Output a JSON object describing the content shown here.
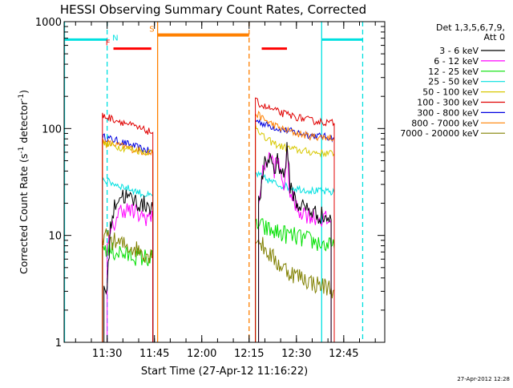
{
  "chart_data": {
    "type": "line",
    "title": "HESSI Observing Summary Count Rates, Corrected",
    "xlabel": "Start Time (27-Apr-12 11:16:22)",
    "ylabel_parts": {
      "before": "Corrected Count Rate (s",
      "sup1": "-1",
      "middle": " detector",
      "sup2": "-1",
      "after": ")"
    },
    "ylabel": "Corrected Count Rate (s-1 detector-1)",
    "y_scale": "log",
    "ylim": [
      1,
      1000
    ],
    "y_ticks": [
      {
        "value": 1,
        "label": "1"
      },
      {
        "value": 10,
        "label": "10"
      },
      {
        "value": 100,
        "label": "100"
      },
      {
        "value": 1000,
        "label": "1000"
      }
    ],
    "xlim": [
      "11:16:22",
      "12:58:00"
    ],
    "x_ticks": [
      {
        "time": "11:30",
        "label": "11:30"
      },
      {
        "time": "11:45",
        "label": "11:45"
      },
      {
        "time": "12:00",
        "label": "12:00"
      },
      {
        "time": "12:15",
        "label": "12:15"
      },
      {
        "time": "12:30",
        "label": "12:30"
      },
      {
        "time": "12:45",
        "label": "12:45"
      }
    ],
    "legend_header": [
      "Det 1,3,5,6,7,9,",
      "Att 0"
    ],
    "legend_position": "right",
    "series": [
      {
        "name": "3 - 6 keV",
        "color": "#000000",
        "times": [
          "11:29",
          "11:30",
          "11:31",
          "11:33",
          "11:35",
          "11:37",
          "11:39",
          "11:41",
          "11:43",
          "11:44.5",
          "12:18",
          "12:20",
          "12:22",
          "12:23",
          "12:24",
          "12:26",
          "12:27",
          "12:28",
          "12:30",
          "12:33",
          "12:36",
          "12:39",
          "12:41"
        ],
        "values": [
          3.5,
          3,
          12,
          22,
          24,
          22,
          21,
          19,
          20,
          18,
          20,
          45,
          55,
          40,
          52,
          35,
          62,
          30,
          20,
          18,
          16,
          15,
          14
        ]
      },
      {
        "name": "6 - 12 keV",
        "color": "#ff00ff",
        "times": [
          "11:30",
          "11:31",
          "11:33",
          "11:35",
          "11:37",
          "11:39",
          "11:41",
          "11:43",
          "11:44.5",
          "12:18",
          "12:20",
          "12:22",
          "12:23",
          "12:24",
          "12:26",
          "12:27",
          "12:28",
          "12:30",
          "12:33",
          "12:36",
          "12:39",
          "12:41"
        ],
        "values": [
          7,
          10,
          15,
          18,
          17,
          16,
          15,
          15,
          14,
          22,
          48,
          55,
          42,
          50,
          30,
          56,
          25,
          18,
          16,
          15,
          14,
          13
        ]
      },
      {
        "name": "12 - 25 keV",
        "color": "#00e000",
        "times": [
          "11:28.5",
          "11:30",
          "11:32",
          "11:34",
          "11:36",
          "11:38",
          "11:40",
          "11:42",
          "11:44.5",
          "12:17",
          "12:19",
          "12:22",
          "12:25",
          "12:28",
          "12:31",
          "12:34",
          "12:37",
          "12:40",
          "12:42"
        ],
        "values": [
          8,
          7.5,
          7,
          7,
          6.5,
          6.5,
          6.3,
          6.2,
          6,
          13,
          12,
          11,
          10.5,
          10,
          9.5,
          9,
          8.5,
          8,
          7.5
        ]
      },
      {
        "name": "25 - 50 keV",
        "color": "#00e0e0",
        "times": [
          "11:28.5",
          "11:30",
          "11:33",
          "11:36",
          "11:39",
          "11:42",
          "11:44.5",
          "12:17",
          "12:20",
          "12:24",
          "12:28",
          "12:32",
          "12:36",
          "12:40",
          "12:42"
        ],
        "values": [
          34,
          32,
          30,
          28,
          26,
          24,
          23,
          38,
          34,
          30,
          28,
          27,
          26,
          25.5,
          25
        ]
      },
      {
        "name": "50 - 100 keV",
        "color": "#d8c800",
        "times": [
          "11:28.5",
          "11:31",
          "11:35",
          "11:40",
          "11:44.5",
          "12:17",
          "12:20",
          "12:25",
          "12:30",
          "12:35",
          "12:42"
        ],
        "values": [
          72,
          70,
          66,
          62,
          60,
          108,
          80,
          68,
          63,
          60,
          58
        ]
      },
      {
        "name": "100 - 300 keV",
        "color": "#e00000",
        "times": [
          "11:28.5",
          "11:31",
          "11:35",
          "11:40",
          "11:44.5",
          "12:17",
          "12:20",
          "12:25",
          "12:30",
          "12:35",
          "12:42"
        ],
        "values": [
          132,
          125,
          115,
          100,
          92,
          180,
          160,
          140,
          128,
          118,
          112
        ]
      },
      {
        "name": "300 - 800 keV",
        "color": "#0000e0",
        "times": [
          "11:28.5",
          "11:31",
          "11:35",
          "11:40",
          "11:44.5",
          "12:17",
          "12:20",
          "12:25",
          "12:30",
          "12:35",
          "12:42"
        ],
        "values": [
          84,
          80,
          74,
          66,
          60,
          120,
          110,
          98,
          92,
          86,
          82
        ]
      },
      {
        "name": "800 - 7000 keV",
        "color": "#ff8000",
        "times": [
          "11:28.5",
          "11:31",
          "11:35",
          "11:40",
          "11:44.5",
          "12:17",
          "12:20",
          "12:25",
          "12:30",
          "12:35",
          "12:42"
        ],
        "values": [
          76,
          72,
          68,
          62,
          58,
          140,
          120,
          100,
          90,
          84,
          82
        ]
      },
      {
        "name": "7000 - 20000 keV",
        "color": "#808000",
        "times": [
          "11:28.5",
          "11:30",
          "11:33",
          "11:36",
          "11:39",
          "11:42",
          "11:44.5",
          "12:17",
          "12:20",
          "12:24",
          "12:28",
          "12:32",
          "12:36",
          "12:40",
          "12:42"
        ],
        "values": [
          10,
          9.5,
          8.5,
          8,
          7.5,
          6.8,
          6.5,
          10,
          7.5,
          5.5,
          4.5,
          4,
          3.5,
          3.3,
          3.1
        ]
      }
    ],
    "annotations": {
      "saa": [
        {
          "label": "S",
          "start": "11:46",
          "end": "12:15",
          "level": 750,
          "color": "#ff8000"
        }
      ],
      "night": [
        {
          "label": "N",
          "start": "11:16:30",
          "end": "11:30",
          "level": 680,
          "color": "#00e0e0"
        },
        {
          "label": "",
          "start": "12:38",
          "end": "12:51",
          "level": 680,
          "color": "#00e0e0"
        }
      ],
      "flare": [
        {
          "label": "F",
          "start": "11:32",
          "end": "11:44",
          "level": 560,
          "color": "#ff0000"
        },
        {
          "label": "",
          "start": "12:19",
          "end": "12:27",
          "level": 560,
          "color": "#ff0000"
        }
      ],
      "verticals": [
        {
          "time": "11:16:30",
          "color": "#00e0e0",
          "style": "solid"
        },
        {
          "time": "11:30",
          "color": "#00e0e0",
          "style": "dashed"
        },
        {
          "time": "11:46",
          "color": "#ff8000",
          "style": "solid"
        },
        {
          "time": "12:15",
          "color": "#ff8000",
          "style": "dashed"
        },
        {
          "time": "12:38",
          "color": "#00e0e0",
          "style": "solid"
        },
        {
          "time": "12:51",
          "color": "#00e0e0",
          "style": "dashed"
        }
      ]
    }
  },
  "footer": {
    "date_stamp": "27-Apr-2012 12:28"
  }
}
